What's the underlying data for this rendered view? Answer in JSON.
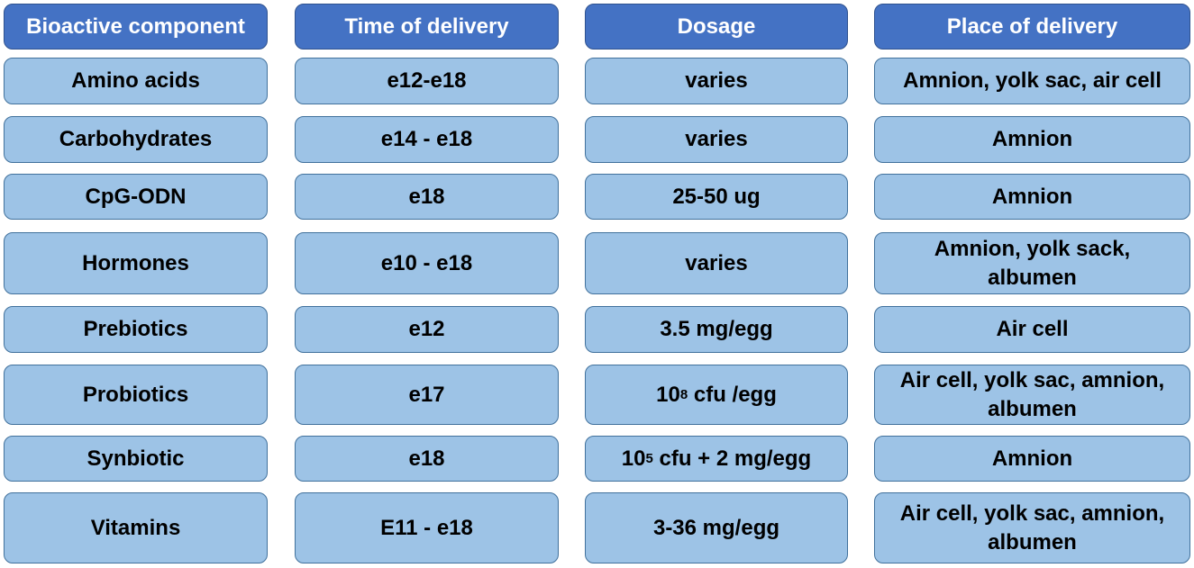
{
  "headers": {
    "component": "Bioactive component",
    "time": "Time of delivery",
    "dosage": "Dosage",
    "place": "Place of delivery"
  },
  "rows": [
    {
      "component": "Amino acids",
      "time": "e12-e18",
      "dosage": "varies",
      "place": "Amnion, yolk sac, air cell"
    },
    {
      "component": "Carbohydrates",
      "time": "e14 - e18",
      "dosage": "varies",
      "place": "Amnion"
    },
    {
      "component": "CpG-ODN",
      "time": "e18",
      "dosage": "25-50 ug",
      "place": "Amnion"
    },
    {
      "component": "Hormones",
      "time": "e10 - e18",
      "dosage": "varies",
      "place": "Amnion, yolk sack, albumen"
    },
    {
      "component": "Prebiotics",
      "time": "e12",
      "dosage": "3.5 mg/egg",
      "place": "Air cell"
    },
    {
      "component": "Probiotics",
      "time": "e17",
      "dosage_base": "10",
      "dosage_exp": "8",
      "dosage_rest": " cfu /egg",
      "place": "Air cell, yolk sac, amnion, albumen"
    },
    {
      "component": "Synbiotic",
      "time": "e18",
      "dosage_base": "10",
      "dosage_exp": "5",
      "dosage_rest": " cfu + 2 mg/egg",
      "place": "Amnion"
    },
    {
      "component": "Vitamins",
      "time": "E11 - e18",
      "dosage": "3-36 mg/egg",
      "place": "Air cell, yolk sac, amnion, albumen"
    }
  ]
}
